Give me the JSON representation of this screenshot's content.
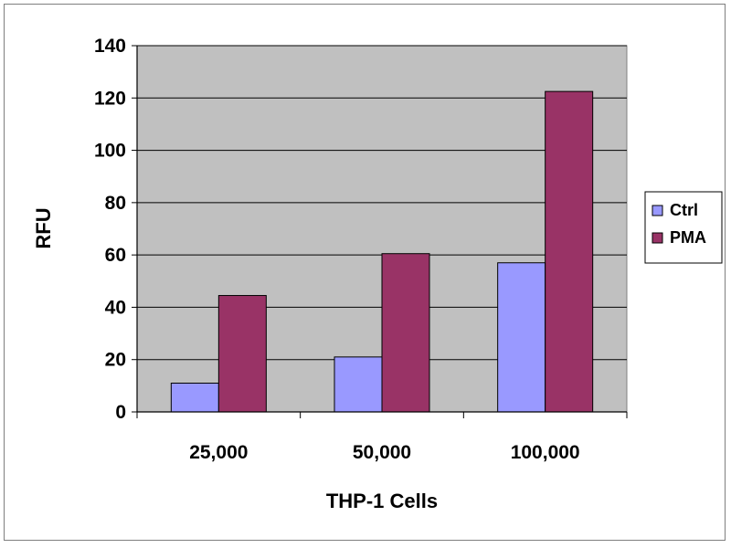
{
  "chart_data": {
    "type": "bar",
    "title": "",
    "xlabel": "THP-1 Cells",
    "ylabel": "RFU",
    "categories": [
      "25,000",
      "50,000",
      "100,000"
    ],
    "series": [
      {
        "name": "Ctrl",
        "values": [
          11,
          21,
          57
        ],
        "color": "#9999ff"
      },
      {
        "name": "PMA",
        "values": [
          44.5,
          60.5,
          122.5
        ],
        "color": "#993366"
      }
    ],
    "ylim": [
      0,
      140
    ],
    "yticks": [
      "0",
      "20",
      "40",
      "60",
      "80",
      "100",
      "120",
      "140"
    ],
    "grid": true,
    "legend_position": "right",
    "plot_background": "#c0c0c0"
  }
}
